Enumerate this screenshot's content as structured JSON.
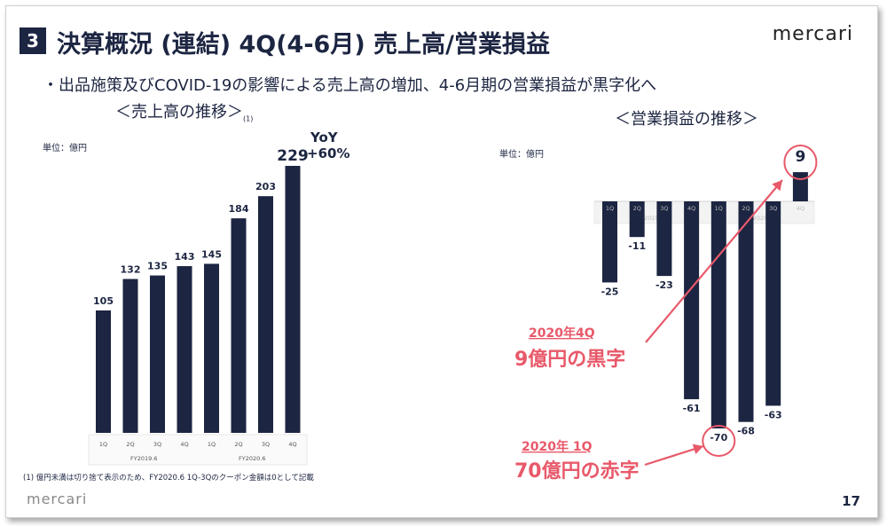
{
  "header": {
    "section_number": "3",
    "title": "決算概況 (連結) 4Q(4-6月) 売上高/営業損益",
    "brand": "mercari"
  },
  "subtitle": "・出品施策及びCOVID-19の影響による売上高の増加、4-6月期の営業損益が黒字化へ",
  "left": {
    "heading": "＜売上高の推移＞",
    "heading_note": "(1)",
    "unit": "単位：億円",
    "yoy_label": "YoY",
    "yoy_value": "+60%"
  },
  "right": {
    "heading": "＜営業損益の推移＞",
    "unit": "単位：億円",
    "callout_profit_year": "2020年4Q",
    "callout_profit_text": "9億円の黒字",
    "callout_loss_year": "2020年 1Q",
    "callout_loss_text": "70億円の赤字"
  },
  "footnote": "(1) 億円未満は切り捨て表示のため、FY2020.6 1Q-3Qのクーポン金額は0として記載",
  "footer": {
    "brand": "mercari",
    "page": "17"
  },
  "colors": {
    "bar": "#1c2541",
    "accent": "#e8596a"
  },
  "chart_data": [
    {
      "type": "bar",
      "title": "＜売上高の推移＞",
      "ylabel": "単位：億円",
      "categories": [
        "1Q",
        "2Q",
        "3Q",
        "4Q",
        "1Q",
        "2Q",
        "3Q",
        "4Q"
      ],
      "groups": [
        {
          "label": "FY2019.6",
          "categories": [
            "1Q",
            "2Q",
            "3Q",
            "4Q"
          ]
        },
        {
          "label": "FY2020.6",
          "categories": [
            "1Q",
            "2Q",
            "3Q",
            "4Q"
          ]
        }
      ],
      "values": [
        105,
        132,
        135,
        143,
        145,
        184,
        203,
        229
      ],
      "ylim": [
        0,
        240
      ],
      "annotations": [
        {
          "text": "YoY +60%",
          "target_index": 7
        }
      ]
    },
    {
      "type": "bar",
      "title": "＜営業損益の推移＞",
      "ylabel": "単位：億円",
      "categories": [
        "1Q",
        "2Q",
        "3Q",
        "4Q",
        "1Q",
        "2Q",
        "3Q",
        "4Q"
      ],
      "groups": [
        {
          "label": "FY2019.6",
          "categories": [
            "1Q",
            "2Q",
            "3Q",
            "4Q"
          ]
        },
        {
          "label": "FY2020.6",
          "categories": [
            "1Q",
            "2Q",
            "3Q",
            "4Q"
          ]
        }
      ],
      "values": [
        -25,
        -11,
        -23,
        -61,
        -70,
        -68,
        -63,
        9
      ],
      "ylim": [
        -75,
        15
      ],
      "annotations": [
        {
          "text": "2020年4Q 9億円の黒字",
          "target_index": 7
        },
        {
          "text": "2020年 1Q 70億円の赤字",
          "target_index": 4
        }
      ]
    }
  ]
}
